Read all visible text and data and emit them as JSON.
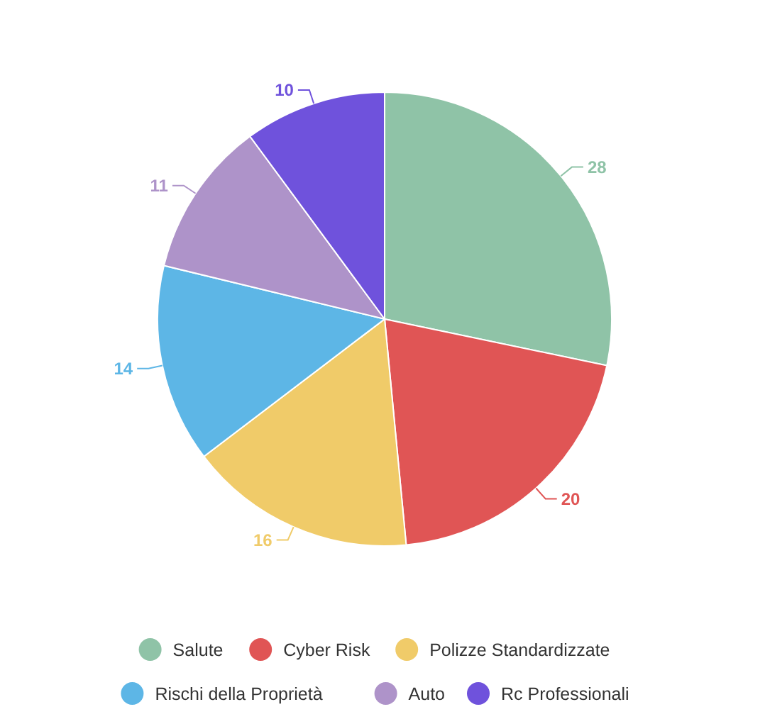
{
  "chart_data": {
    "type": "pie",
    "categories": [
      "Salute",
      "Cyber Risk",
      "Polizze Standardizzate",
      "Rischi della Proprietà",
      "Auto",
      "Rc Professionali"
    ],
    "values": [
      28,
      20,
      16,
      14,
      11,
      10
    ],
    "colors": [
      "#8fc3a7",
      "#e05555",
      "#f0cb69",
      "#5db6e6",
      "#ae93c9",
      "#6f52dc"
    ],
    "data_labels": true,
    "legend": "bottom"
  }
}
